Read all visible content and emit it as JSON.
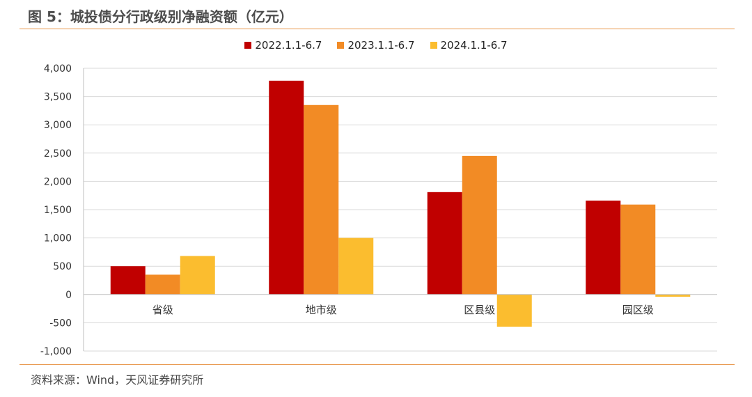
{
  "header": {
    "title": "图 5：城投债分行政级别净融资额（亿元）"
  },
  "footer": {
    "source": "资料来源：Wind，天风证券研究所"
  },
  "chart_data": {
    "type": "bar",
    "categories": [
      "省级",
      "地市级",
      "区县级",
      "园区级"
    ],
    "series": [
      {
        "name": "2022.1.1-6.7",
        "color": "#c00000",
        "values": [
          500,
          3780,
          1810,
          1660
        ]
      },
      {
        "name": "2023.1.1-6.7",
        "color": "#f28b25",
        "values": [
          350,
          3350,
          2450,
          1590
        ]
      },
      {
        "name": "2024.1.1-6.7",
        "color": "#fbbd2f",
        "values": [
          680,
          1000,
          -570,
          -40
        ]
      }
    ],
    "ylim": [
      -1000,
      4000
    ],
    "yticks": [
      4000,
      3500,
      3000,
      2500,
      2000,
      1500,
      1000,
      500,
      0,
      -500,
      -1000
    ],
    "ytick_labels": [
      "4,000",
      "3,500",
      "3,000",
      "2,500",
      "2,000",
      "1,500",
      "1,000",
      "500",
      "0",
      "-500",
      "-1,000"
    ],
    "grid": true,
    "legend_position": "top-center"
  }
}
